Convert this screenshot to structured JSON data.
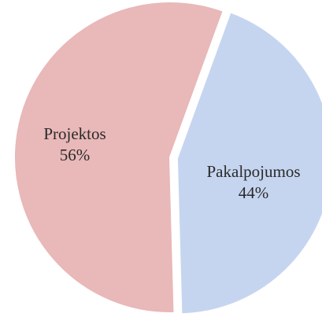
{
  "chart_data": {
    "type": "pie",
    "slices": [
      {
        "label": "Pakalpojumos",
        "value": 44,
        "value_label": "44%",
        "color": "#c6d5ef"
      },
      {
        "label": "Projektos",
        "value": 56,
        "value_label": "56%",
        "color": "#e9b8b9"
      }
    ],
    "exploded_slice": "Pakalpojumos",
    "legend": "none",
    "title": ""
  }
}
